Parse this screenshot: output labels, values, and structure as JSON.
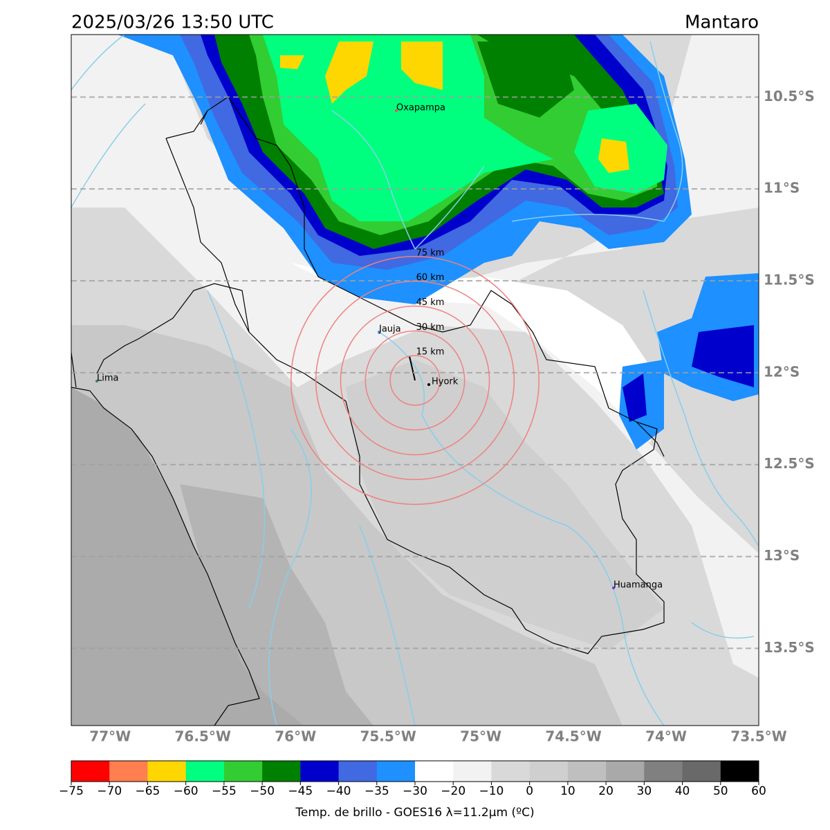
{
  "title": "2025/03/26 13:50 UTC",
  "region": "Mantaro",
  "map": {
    "type": "map",
    "xlim": [
      -77.21,
      -73.5
    ],
    "ylim": [
      -13.92,
      -10.16
    ],
    "xticks": [
      {
        "value": -77,
        "label": "77°W"
      },
      {
        "value": -76.5,
        "label": "76.5°W"
      },
      {
        "value": -76,
        "label": "76°W"
      },
      {
        "value": -75.5,
        "label": "75.5°W"
      },
      {
        "value": -75,
        "label": "75°W"
      },
      {
        "value": -74.5,
        "label": "74.5°W"
      },
      {
        "value": -74,
        "label": "74°W"
      },
      {
        "value": -73.5,
        "label": "73.5°W"
      }
    ],
    "yticks": [
      {
        "value": -10.5,
        "label": "10.5°S"
      },
      {
        "value": -11,
        "label": "11°S"
      },
      {
        "value": -11.5,
        "label": "11.5°S"
      },
      {
        "value": -12,
        "label": "12°S"
      },
      {
        "value": -12.5,
        "label": "12.5°S"
      },
      {
        "value": -13,
        "label": "13°S"
      },
      {
        "value": -13.5,
        "label": "13.5°S"
      }
    ],
    "grid": true,
    "cities": [
      "Oxapampa",
      "Jauja",
      "Hyork",
      "Lima",
      "Huamanga"
    ],
    "rings": [
      {
        "value": 15,
        "label": "15 km"
      },
      {
        "value": 30,
        "label": "30 km"
      },
      {
        "value": 45,
        "label": "45 km"
      },
      {
        "value": 60,
        "label": "60 km"
      },
      {
        "value": 75,
        "label": "75 km"
      }
    ]
  },
  "colorbar": {
    "label": "Temp. de brillo - GOES16 λ=11.2μm (ºC)",
    "ticks": [
      {
        "value": -75,
        "label": "−75"
      },
      {
        "value": -70,
        "label": "−70"
      },
      {
        "value": -65,
        "label": "−65"
      },
      {
        "value": -60,
        "label": "−60"
      },
      {
        "value": -55,
        "label": "−55"
      },
      {
        "value": -50,
        "label": "−50"
      },
      {
        "value": -45,
        "label": "−45"
      },
      {
        "value": -40,
        "label": "−40"
      },
      {
        "value": -35,
        "label": "−35"
      },
      {
        "value": -30,
        "label": "−30"
      },
      {
        "value": -20,
        "label": "−20"
      },
      {
        "value": -10,
        "label": "−10"
      },
      0,
      10,
      20,
      30,
      40,
      50,
      60
    ],
    "colors": [
      "#ff0000",
      "#ff7f50",
      "#ffd700",
      "#00ff7f",
      "#32cd32",
      "#008000",
      "#0000cd",
      "#4169e1",
      "#1e90ff",
      "#ffffff",
      "#f2f2f2",
      "#d9d9d9",
      "#cfcfcf",
      "#bfbfbf",
      "#a9a9a9",
      "#808080",
      "#696969",
      "#000000"
    ]
  }
}
